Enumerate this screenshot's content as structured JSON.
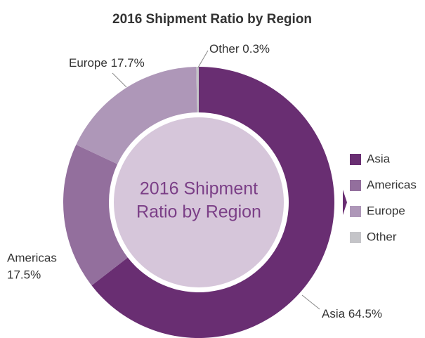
{
  "chart_data": {
    "type": "pie",
    "title": "2016 Shipment Ratio by Region",
    "center_text": [
      "2016 Shipment",
      "Ratio by Region"
    ],
    "categories": [
      "Asia",
      "Americas",
      "Europe",
      "Other"
    ],
    "values": [
      64.5,
      17.5,
      17.7,
      0.3
    ],
    "value_labels": [
      "64.5%",
      "17.5%",
      "17.7%",
      "0.3%"
    ],
    "colors": [
      "#692e72",
      "#936f9d",
      "#ae97b8",
      "#c4c4c8"
    ],
    "legend": "right"
  }
}
